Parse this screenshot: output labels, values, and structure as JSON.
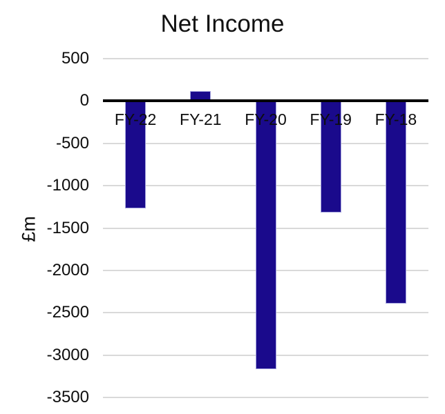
{
  "chart_data": {
    "type": "bar",
    "title": "Net Income",
    "subtitle": "",
    "xlabel": "",
    "ylabel": "£m",
    "categories": [
      "FY-22",
      "FY-21",
      "FY-20",
      "FY-19",
      "FY-18"
    ],
    "values": [
      -1270,
      120,
      -3170,
      -1320,
      -2390
    ],
    "series": [
      {
        "name": "Net Income",
        "values": [
          -1270,
          120,
          -3170,
          -1320,
          -2390
        ]
      }
    ],
    "y_ticks": [
      500,
      0,
      -500,
      -1000,
      -1500,
      -2000,
      -2500,
      -3000,
      -3500
    ],
    "ylim": [
      500,
      -3500
    ],
    "grid": "horizontal-on",
    "legend": "none",
    "colors": {
      "bar_fill": "#1a0a8c",
      "bar_border": "#a3a3dd",
      "gridline": "#d9d9d9",
      "zero_line": "#000000",
      "text": "#0d0d0d",
      "background": "#ffffff"
    }
  }
}
